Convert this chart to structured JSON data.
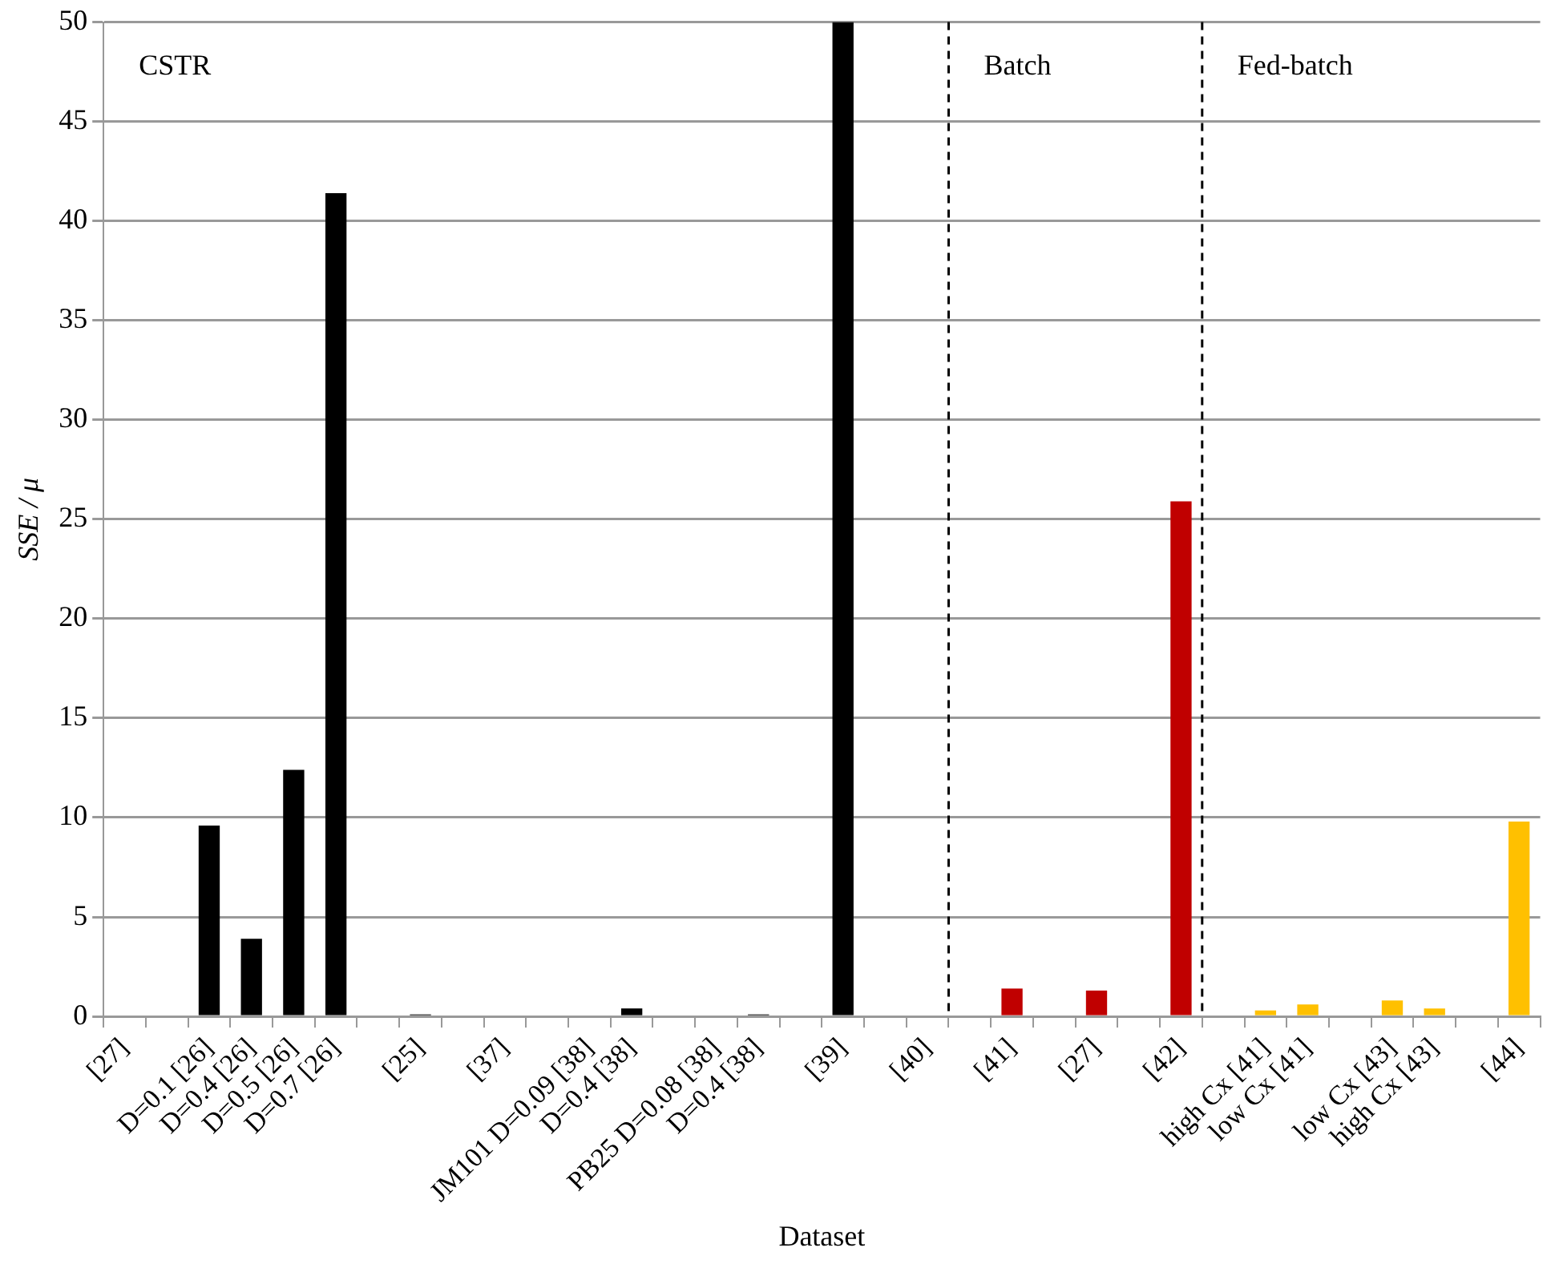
{
  "chart_data": {
    "type": "bar",
    "xlabel": "Dataset",
    "ylabel": "SSE / μ",
    "categories": [
      "[27]",
      null,
      "D=0.1 [26]",
      "D=0.4 [26]",
      "D=0.5 [26]",
      "D=0.7 [26]",
      null,
      "[25]",
      null,
      "[37]",
      null,
      "JM101 D=0.09 [38]",
      "D=0.4 [38]",
      null,
      "PB25 D=0.08 [38]",
      "D=0.4 [38]",
      null,
      "[39]",
      null,
      "[40]",
      null,
      "[41]",
      null,
      "[27]",
      null,
      "[42]",
      null,
      "high Cx [41]",
      "low Cx [41]",
      null,
      "low Cx [43]",
      "high Cx [43]",
      null,
      "[44]"
    ],
    "values": [
      0,
      0,
      9.6,
      3.9,
      12.4,
      41.4,
      0,
      0.1,
      0,
      0,
      0,
      0,
      0.4,
      0,
      0,
      0.1,
      0,
      50,
      0,
      0,
      0,
      1.4,
      0,
      1.3,
      0,
      25.9,
      0,
      0.3,
      0.6,
      0,
      0.8,
      0.4,
      0,
      9.8
    ],
    "colors": [
      "#000000",
      "#000000",
      "#000000",
      "#000000",
      "#000000",
      "#000000",
      "#000000",
      "#000000",
      "#000000",
      "#000000",
      "#000000",
      "#000000",
      "#000000",
      "#000000",
      "#000000",
      "#000000",
      "#000000",
      "#000000",
      "#000000",
      "#000000",
      "#c00000",
      "#c00000",
      "#c00000",
      "#c00000",
      "#c00000",
      "#c00000",
      "#ffc000",
      "#ffc000",
      "#ffc000",
      "#ffc000",
      "#ffc000",
      "#ffc000",
      "#ffc000",
      "#ffc000"
    ],
    "ylim": [
      0,
      50
    ],
    "yticks": [
      0,
      5,
      10,
      15,
      20,
      25,
      30,
      35,
      40,
      45,
      50
    ],
    "grid": "y",
    "legend": false,
    "annotations": [
      "CSTR",
      "Batch",
      "Fed-batch"
    ]
  }
}
